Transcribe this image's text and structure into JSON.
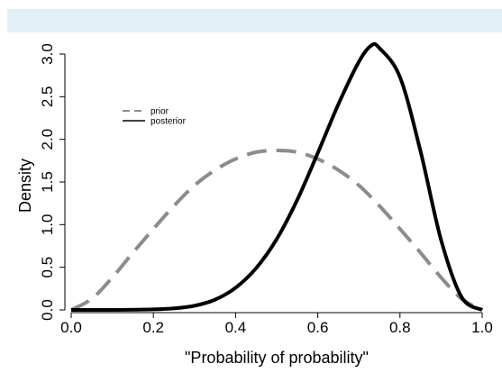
{
  "chart_data": {
    "type": "line",
    "title": "",
    "xlabel": "\"Probability of probability\"",
    "ylabel": "Density",
    "xlim": [
      0,
      1
    ],
    "ylim": [
      0,
      3.1
    ],
    "x_ticks": [
      "0.0",
      "0.2",
      "0.4",
      "0.6",
      "0.8",
      "1.0"
    ],
    "y_ticks": [
      "0.0",
      "0.5",
      "1.0",
      "1.5",
      "2.0",
      "2.5",
      "3.0"
    ],
    "legend_position": "top-left",
    "grid": false,
    "series": [
      {
        "name": "prior",
        "style": "dashed",
        "color": "#8c8c8c",
        "x": [
          0.0,
          0.05,
          0.1,
          0.15,
          0.2,
          0.25,
          0.3,
          0.35,
          0.4,
          0.45,
          0.5,
          0.55,
          0.6,
          0.65,
          0.7,
          0.75,
          0.8,
          0.85,
          0.9,
          0.95,
          1.0
        ],
        "y": [
          0.0,
          0.13,
          0.38,
          0.67,
          0.95,
          1.22,
          1.46,
          1.64,
          1.77,
          1.85,
          1.87,
          1.85,
          1.77,
          1.64,
          1.46,
          1.22,
          0.95,
          0.67,
          0.38,
          0.13,
          0.0
        ]
      },
      {
        "name": "posterior",
        "style": "solid",
        "color": "#000000",
        "x": [
          0.0,
          0.1,
          0.2,
          0.25,
          0.3,
          0.35,
          0.4,
          0.45,
          0.5,
          0.55,
          0.6,
          0.65,
          0.7,
          0.73,
          0.75,
          0.8,
          0.85,
          0.9,
          0.95,
          1.0
        ],
        "y": [
          0.0,
          0.0,
          0.006,
          0.018,
          0.049,
          0.12,
          0.26,
          0.49,
          0.83,
          1.29,
          1.84,
          2.41,
          2.91,
          3.1,
          3.07,
          2.73,
          1.86,
          0.82,
          0.15,
          0.0
        ]
      }
    ]
  }
}
